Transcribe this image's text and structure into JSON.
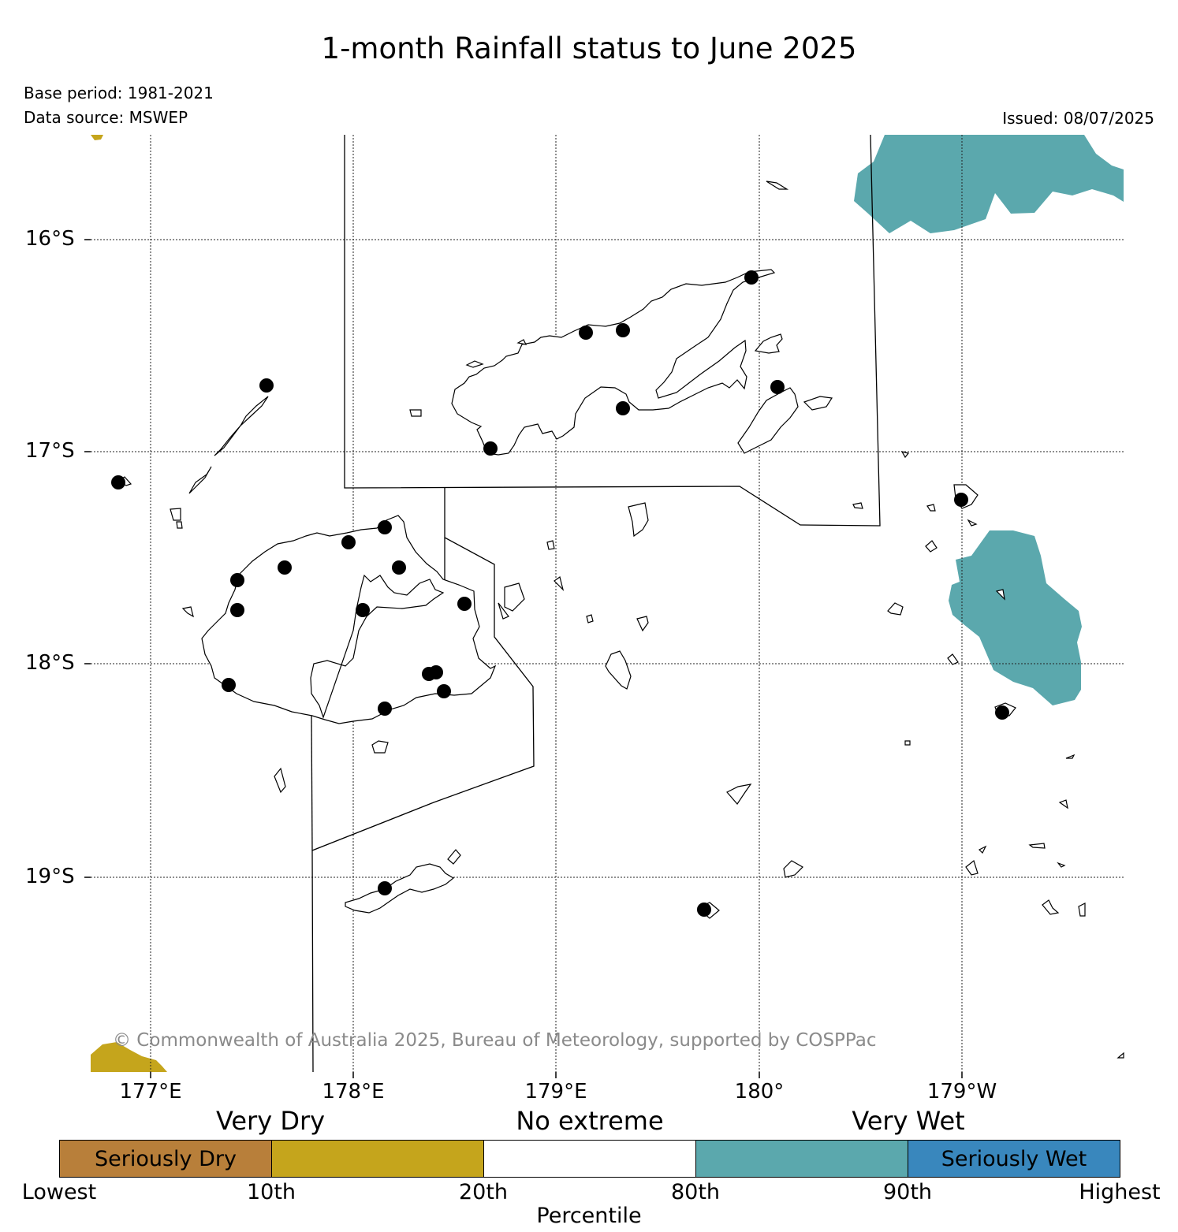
{
  "title": "1-month Rainfall status to June 2025",
  "base_period": "Base period: 1981-2021",
  "data_source": "Data source: MSWEP",
  "issued": "Issued: 08/07/2025",
  "copyright": "© Commonwealth of Australia 2025, Bureau of Meteorology, supported by COSPPac",
  "axes": {
    "lat_ticks": [
      "16°S",
      "17°S",
      "18°S",
      "19°S"
    ],
    "lon_ticks": [
      "177°E",
      "178°E",
      "179°E",
      "180°",
      "179°W"
    ]
  },
  "legend": {
    "categories": [
      "Very Dry",
      "No extreme",
      "Very Wet"
    ],
    "segments": [
      {
        "label": "Seriously Dry",
        "color": "#b87f3a"
      },
      {
        "label": "",
        "color": "#c5a51c"
      },
      {
        "label": "",
        "color": "#ffffff"
      },
      {
        "label": "",
        "color": "#5ba8ad"
      },
      {
        "label": "Seriously Wet",
        "color": "#3987bd"
      }
    ],
    "percentiles": [
      "Lowest",
      "10th",
      "20th",
      "80th",
      "90th",
      "Highest"
    ],
    "axis_label": "Percentile"
  },
  "colors": {
    "very_dry": "#c5a51c",
    "very_wet": "#5ba8ad"
  }
}
